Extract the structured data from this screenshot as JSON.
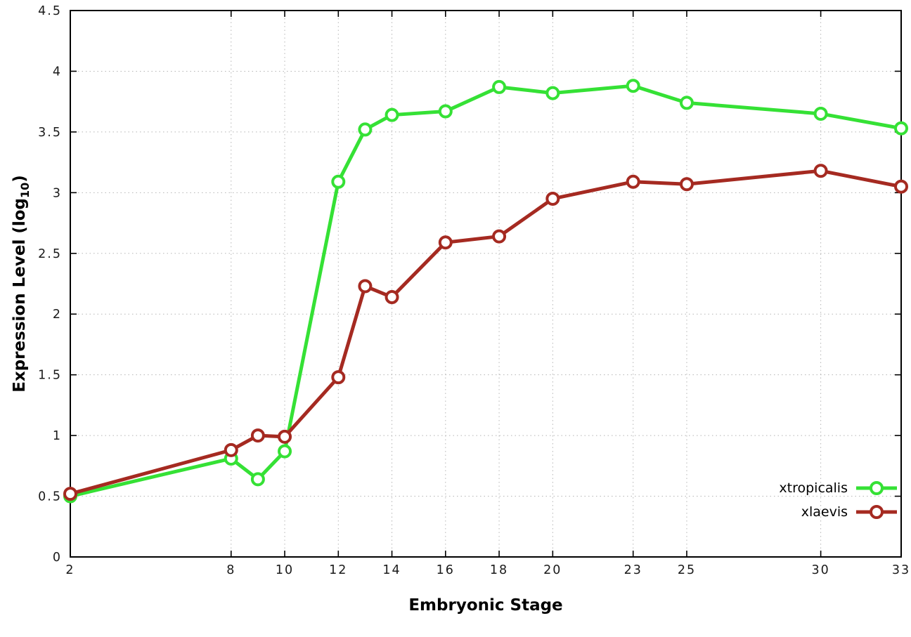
{
  "chart_data": {
    "type": "line",
    "x": [
      2,
      8,
      9,
      10,
      12,
      13,
      14,
      16,
      18,
      20,
      23,
      25,
      30,
      33
    ],
    "series": [
      {
        "name": "xtropicalis",
        "color": "#35e135",
        "values": [
          0.5,
          0.81,
          0.64,
          0.87,
          3.09,
          3.52,
          3.64,
          3.67,
          3.87,
          3.82,
          3.88,
          3.74,
          3.65,
          3.53
        ]
      },
      {
        "name": "xlaevis",
        "color": "#a52a21",
        "values": [
          0.52,
          0.88,
          1.0,
          0.99,
          1.48,
          2.23,
          2.14,
          2.59,
          2.64,
          2.95,
          3.09,
          3.07,
          3.18,
          3.05
        ]
      }
    ],
    "title": "",
    "xlabel": "Embryonic Stage",
    "ylabel": "Expression Level (log10)",
    "ylabel_parts": {
      "main": "Expression Level (log",
      "sub": "10",
      "close": ")"
    },
    "xlim": [
      2,
      33
    ],
    "ylim": [
      0,
      4.5
    ],
    "xticks": [
      2,
      8,
      10,
      12,
      14,
      16,
      18,
      20,
      23,
      25,
      30,
      33
    ],
    "xtick_labels": [
      "2",
      "8",
      "10",
      "12",
      "14",
      "16",
      "18",
      "20",
      "23",
      "25",
      "30",
      "33"
    ],
    "yticks": [
      0,
      0.5,
      1,
      1.5,
      2,
      2.5,
      3,
      3.5,
      4,
      4.5
    ],
    "ytick_labels": [
      "0",
      "0.5",
      "1",
      "1.5",
      "2",
      "2.5",
      "3",
      "3.5",
      "4",
      "4.5"
    ],
    "grid": true,
    "grid_style": "dotted",
    "legend_position": "bottom-right",
    "colors": {
      "background": "#ffffff",
      "border": "#000000",
      "grid": "#b5b5b5",
      "tick_label": "#1a1a1a",
      "marker_fill": "#ffffff"
    }
  }
}
